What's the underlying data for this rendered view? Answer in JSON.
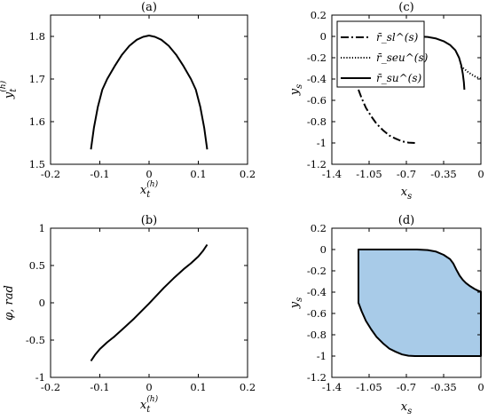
{
  "chart_data": [
    {
      "panel": "a",
      "type": "line",
      "title": "(a)",
      "xlabel": "x_t^(h)",
      "ylabel": "y_t^(h)",
      "xlim": [
        -0.2,
        0.2
      ],
      "ylim": [
        1.5,
        1.85
      ],
      "xticks": [
        "-0.2",
        "-0.1",
        "0",
        "0.1",
        "0.2"
      ],
      "yticks": [
        "1.5",
        "1.6",
        "1.7",
        "1.8"
      ],
      "grid": false,
      "series": [
        {
          "style": "solid",
          "color": "#000000",
          "x": [
            -0.118,
            -0.112,
            -0.104,
            -0.095,
            -0.085,
            -0.07,
            -0.055,
            -0.04,
            -0.025,
            -0.012,
            0,
            0.012,
            0.025,
            0.04,
            0.055,
            0.07,
            0.085,
            0.095,
            0.104,
            0.112,
            0.118
          ],
          "y": [
            1.535,
            1.585,
            1.635,
            1.675,
            1.7,
            1.73,
            1.757,
            1.778,
            1.792,
            1.799,
            1.802,
            1.799,
            1.792,
            1.778,
            1.757,
            1.73,
            1.7,
            1.675,
            1.635,
            1.585,
            1.535
          ]
        }
      ]
    },
    {
      "panel": "b",
      "type": "line",
      "title": "(b)",
      "xlabel": "x_t^(h)",
      "ylabel": "φ, rad",
      "xlim": [
        -0.2,
        0.2
      ],
      "ylim": [
        -1,
        1
      ],
      "xticks": [
        "-0.2",
        "-0.1",
        "0",
        "0.1",
        "0.2"
      ],
      "yticks": [
        "-1",
        "-0.5",
        "0",
        "0.5",
        "1"
      ],
      "grid": false,
      "series": [
        {
          "style": "solid",
          "color": "#000000",
          "x": [
            -0.118,
            -0.11,
            -0.1,
            -0.085,
            -0.07,
            -0.05,
            -0.03,
            0,
            0.03,
            0.05,
            0.07,
            0.085,
            0.1,
            0.11,
            0.118
          ],
          "y": [
            -0.78,
            -0.7,
            -0.62,
            -0.53,
            -0.45,
            -0.33,
            -0.21,
            -0.01,
            0.2,
            0.33,
            0.45,
            0.53,
            0.62,
            0.7,
            0.78
          ]
        }
      ]
    },
    {
      "panel": "c",
      "type": "line",
      "title": "(c)",
      "xlabel": "x_s",
      "ylabel": "y_s",
      "xlim": [
        -1.4,
        0
      ],
      "ylim": [
        -1.2,
        0.2
      ],
      "xticks": [
        "-1.4",
        "-1.05",
        "-0.7",
        "-0.35",
        "0"
      ],
      "yticks": [
        "-1.2",
        "-1",
        "-0.8",
        "-0.6",
        "-0.4",
        "-0.2",
        "0",
        "0.2"
      ],
      "grid": false,
      "legend": {
        "position": "top-left"
      },
      "series": [
        {
          "name": "r̄_sl^(s)",
          "style": "dashdot",
          "color": "#000000",
          "x": [
            -1.15,
            -1.12,
            -1.08,
            -1.03,
            -0.98,
            -0.92,
            -0.86,
            -0.8,
            -0.74,
            -0.68,
            -0.62
          ],
          "y": [
            -0.5,
            -0.58,
            -0.67,
            -0.75,
            -0.82,
            -0.88,
            -0.93,
            -0.96,
            -0.985,
            -0.997,
            -1.0
          ]
        },
        {
          "name": "r̄_seu^(s)",
          "style": "dotted",
          "color": "#000000",
          "x": [
            -0.19,
            -0.15,
            -0.12,
            -0.09,
            -0.06,
            -0.03,
            0
          ],
          "y": [
            -0.28,
            -0.31,
            -0.335,
            -0.355,
            -0.373,
            -0.387,
            -0.395
          ]
        },
        {
          "name": "r̄_su^(s)",
          "style": "solid",
          "color": "#000000",
          "x": [
            -0.6,
            -0.5,
            -0.42,
            -0.35,
            -0.29,
            -0.24,
            -0.205,
            -0.185,
            -0.17,
            -0.16,
            -0.155
          ],
          "y": [
            0.0,
            -0.005,
            -0.02,
            -0.045,
            -0.08,
            -0.13,
            -0.2,
            -0.27,
            -0.35,
            -0.43,
            -0.5
          ]
        }
      ]
    },
    {
      "panel": "d",
      "type": "area",
      "title": "(d)",
      "xlabel": "x_s",
      "ylabel": "y_s",
      "xlim": [
        -1.4,
        0
      ],
      "ylim": [
        -1.2,
        0.2
      ],
      "xticks": [
        "-1.4",
        "-1.05",
        "-0.7",
        "-0.35",
        "0"
      ],
      "yticks": [
        "-1.2",
        "-1",
        "-0.8",
        "-0.6",
        "-0.4",
        "-0.2",
        "0",
        "0.2"
      ],
      "grid": false,
      "fill_color": "#a8cbe8",
      "edge_color": "#000000",
      "boundary": {
        "x": [
          -1.15,
          -0.6,
          -0.5,
          -0.42,
          -0.35,
          -0.29,
          -0.26,
          -0.23,
          -0.2,
          -0.17,
          -0.14,
          -0.1,
          -0.06,
          -0.03,
          0,
          0,
          -0.62,
          -0.68,
          -0.74,
          -0.8,
          -0.86,
          -0.92,
          -0.98,
          -1.03,
          -1.08,
          -1.12,
          -1.15,
          -1.15
        ],
        "y": [
          0,
          0,
          -0.005,
          -0.02,
          -0.05,
          -0.09,
          -0.13,
          -0.19,
          -0.245,
          -0.285,
          -0.315,
          -0.345,
          -0.37,
          -0.385,
          -0.395,
          -1,
          -1,
          -0.997,
          -0.985,
          -0.96,
          -0.93,
          -0.88,
          -0.82,
          -0.75,
          -0.67,
          -0.58,
          -0.5,
          0
        ]
      }
    }
  ]
}
